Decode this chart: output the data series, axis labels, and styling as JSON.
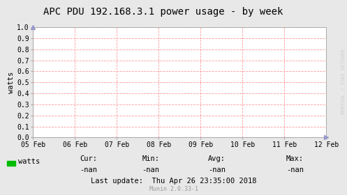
{
  "title": "APC PDU 192.168.3.1 power usage - by week",
  "ylabel": "watts",
  "background_color": "#e8e8e8",
  "plot_bg_color": "#ffffff",
  "grid_color": "#ff9999",
  "ylim": [
    0.0,
    1.0
  ],
  "yticks": [
    0.0,
    0.1,
    0.2,
    0.3,
    0.4,
    0.5,
    0.6,
    0.7,
    0.8,
    0.9,
    1.0
  ],
  "xtick_labels": [
    "05 Feb",
    "06 Feb",
    "07 Feb",
    "08 Feb",
    "09 Feb",
    "10 Feb",
    "11 Feb",
    "12 Feb"
  ],
  "legend_label": "watts",
  "legend_color": "#00bb00",
  "cur_label": "Cur:",
  "cur_val": "-nan",
  "min_label": "Min:",
  "min_val": "-nan",
  "avg_label": "Avg:",
  "avg_val": "-nan",
  "max_label": "Max:",
  "max_val": "-nan",
  "last_update": "Last update:  Thu Apr 26 23:35:00 2018",
  "munin_version": "Munin 2.0.33-1",
  "watermark": "RRDTOOL / TOBI OETIKER",
  "title_fontsize": 10,
  "axis_label_fontsize": 7.5,
  "tick_fontsize": 7,
  "stats_fontsize": 7.5,
  "watermark_fontsize": 5,
  "border_color": "#aaaaaa",
  "arrow_color": "#9999cc",
  "text_color": "#000000",
  "munin_color": "#999999"
}
